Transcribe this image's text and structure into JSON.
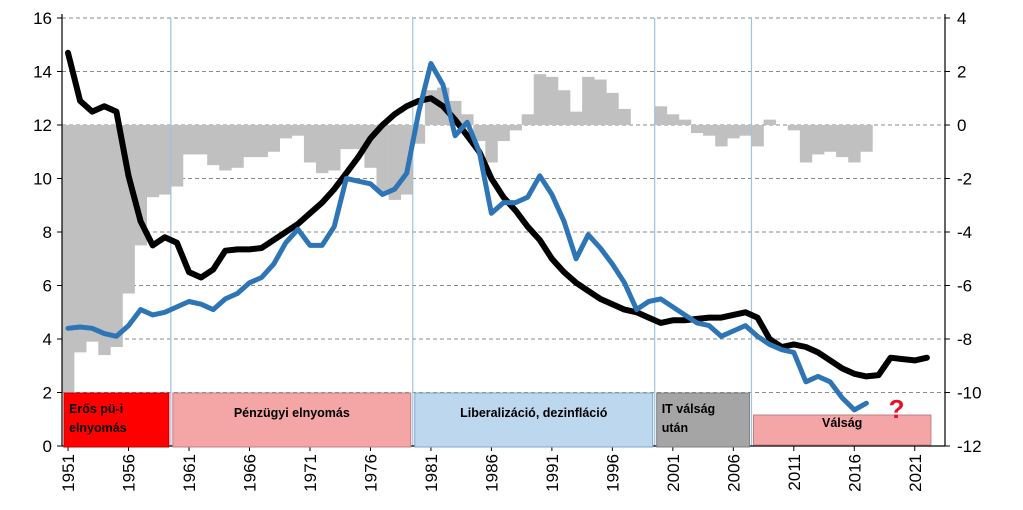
{
  "chart_data": {
    "type": "line",
    "title": "",
    "xlabel": "",
    "ylabel": "",
    "x_range": [
      1951,
      2023
    ],
    "ylim_left": [
      0,
      16
    ],
    "ylim_right": [
      -12,
      4
    ],
    "left_ticks": [
      "0",
      "2",
      "4",
      "6",
      "8",
      "10",
      "12",
      "14",
      "16"
    ],
    "right_ticks": [
      "-12",
      "-10",
      "-8",
      "-6",
      "-4",
      "-2",
      "0",
      "2",
      "4"
    ],
    "x_ticks": [
      "1951",
      "1956",
      "1961",
      "1966",
      "1971",
      "1976",
      "1981",
      "1986",
      "1991",
      "1996",
      "2001",
      "2006",
      "2011",
      "2016",
      "2021"
    ],
    "grid": "horizontal dashed at right-axis values",
    "vertical_dividers": [
      1960,
      1980,
      2000,
      2008
    ],
    "colors": {
      "black_line": "#000000",
      "blue_line": "#2e75b6",
      "bars": "#c0c0c0",
      "divider": "#9ec3e0"
    },
    "eras": [
      {
        "label_lines": [
          "Erős pü-i",
          "elnyomás"
        ],
        "from": 1951,
        "to": 1960,
        "fill": "#ff0000",
        "stroke": "#c00000"
      },
      {
        "label_lines": [
          "Pénzügyi elnyomás"
        ],
        "from": 1960,
        "to": 1980,
        "fill": "#f4a6a6",
        "stroke": "#c08080"
      },
      {
        "label_lines": [
          "Liberalizáció, dezinfláció"
        ],
        "from": 1980,
        "to": 2000,
        "fill": "#bdd7ee",
        "stroke": "#7da7c8"
      },
      {
        "label_lines": [
          "IT válság",
          "után"
        ],
        "from": 2000,
        "to": 2008,
        "fill": "#a5a5a5",
        "stroke": "#7f7f7f"
      },
      {
        "label_lines": [
          "Válság"
        ],
        "from": 2008,
        "to": 2023,
        "fill": "#f4a6a6",
        "stroke": "#c08080"
      }
    ],
    "annotation": {
      "text": "?",
      "color": "#e81123",
      "x": 2019,
      "y_left": 1.5
    },
    "series": [
      {
        "name": "black",
        "axis": "left",
        "x": [
          1951,
          1952,
          1953,
          1954,
          1955,
          1956,
          1957,
          1958,
          1959,
          1960,
          1961,
          1962,
          1963,
          1964,
          1965,
          1966,
          1967,
          1968,
          1969,
          1970,
          1971,
          1972,
          1973,
          1974,
          1975,
          1976,
          1977,
          1978,
          1979,
          1980,
          1981,
          1982,
          1983,
          1984,
          1985,
          1986,
          1987,
          1988,
          1989,
          1990,
          1991,
          1992,
          1993,
          1994,
          1995,
          1996,
          1997,
          1998,
          1999,
          2000,
          2001,
          2002,
          2003,
          2004,
          2005,
          2006,
          2007,
          2008,
          2009,
          2010,
          2011,
          2012,
          2013,
          2014,
          2015,
          2016,
          2017,
          2018,
          2019,
          2020,
          2021,
          2022
        ],
        "values": [
          14.7,
          12.9,
          12.5,
          12.7,
          12.5,
          10.1,
          8.4,
          7.5,
          7.8,
          7.6,
          6.5,
          6.3,
          6.6,
          7.3,
          7.35,
          7.35,
          7.4,
          7.7,
          8.0,
          8.3,
          8.7,
          9.1,
          9.6,
          10.2,
          10.8,
          11.5,
          12.0,
          12.4,
          12.7,
          12.9,
          13.0,
          12.7,
          12.2,
          11.6,
          11.0,
          10.0,
          9.3,
          8.8,
          8.2,
          7.7,
          7.0,
          6.5,
          6.1,
          5.8,
          5.5,
          5.3,
          5.1,
          5.0,
          4.8,
          4.6,
          4.7,
          4.7,
          4.75,
          4.8,
          4.8,
          4.9,
          5.0,
          4.8,
          4.0,
          3.7,
          3.8,
          3.7,
          3.5,
          3.2,
          2.9,
          2.7,
          2.6,
          2.65,
          3.3,
          3.25,
          3.2,
          3.3
        ]
      },
      {
        "name": "blue",
        "axis": "left",
        "x": [
          1951,
          1952,
          1953,
          1954,
          1955,
          1956,
          1957,
          1958,
          1959,
          1960,
          1961,
          1962,
          1963,
          1964,
          1965,
          1966,
          1967,
          1968,
          1969,
          1970,
          1971,
          1972,
          1973,
          1974,
          1975,
          1976,
          1977,
          1978,
          1979,
          1980,
          1981,
          1982,
          1983,
          1984,
          1985,
          1986,
          1987,
          1988,
          1989,
          1990,
          1991,
          1992,
          1993,
          1994,
          1995,
          1996,
          1997,
          1998,
          1999,
          2000,
          2001,
          2002,
          2003,
          2004,
          2005,
          2006,
          2007,
          2008,
          2009,
          2010,
          2011,
          2012,
          2013,
          2014,
          2015,
          2016,
          2017
        ],
        "values": [
          4.4,
          4.45,
          4.4,
          4.2,
          4.1,
          4.5,
          5.1,
          4.9,
          5.0,
          5.2,
          5.4,
          5.3,
          5.1,
          5.5,
          5.7,
          6.1,
          6.3,
          6.8,
          7.6,
          8.1,
          7.5,
          7.5,
          8.2,
          10.0,
          9.9,
          9.8,
          9.4,
          9.6,
          10.2,
          12.5,
          14.3,
          13.5,
          11.6,
          12.1,
          11.0,
          8.7,
          9.1,
          9.1,
          9.3,
          10.1,
          9.4,
          8.4,
          7.0,
          7.9,
          7.4,
          6.8,
          6.1,
          5.1,
          5.4,
          5.5,
          5.2,
          4.9,
          4.6,
          4.5,
          4.1,
          4.3,
          4.5,
          4.1,
          3.8,
          3.6,
          3.5,
          2.4,
          2.6,
          2.4,
          1.8,
          1.35,
          1.6
        ]
      },
      {
        "name": "bars",
        "type": "bar",
        "axis": "right",
        "x": [
          1951,
          1952,
          1953,
          1954,
          1955,
          1956,
          1957,
          1958,
          1959,
          1960,
          1961,
          1962,
          1963,
          1964,
          1965,
          1966,
          1967,
          1968,
          1969,
          1970,
          1971,
          1972,
          1973,
          1974,
          1975,
          1976,
          1977,
          1978,
          1979,
          1980,
          1981,
          1982,
          1983,
          1984,
          1985,
          1986,
          1987,
          1988,
          1989,
          1990,
          1991,
          1992,
          1993,
          1994,
          1995,
          1996,
          1997,
          1998,
          1999,
          2000,
          2001,
          2002,
          2003,
          2004,
          2005,
          2006,
          2007,
          2008,
          2009,
          2010,
          2011,
          2012,
          2013,
          2014,
          2015,
          2016,
          2017
        ],
        "values": [
          -10.0,
          -8.5,
          -8.1,
          -8.6,
          -8.3,
          -6.3,
          -4.5,
          -2.7,
          -2.6,
          -2.3,
          -1.1,
          -1.1,
          -1.5,
          -1.7,
          -1.6,
          -1.2,
          -1.2,
          -1.0,
          -0.5,
          -0.4,
          -1.4,
          -1.8,
          -1.7,
          -0.9,
          -0.9,
          -1.6,
          -2.5,
          -2.8,
          -2.6,
          -0.7,
          1.3,
          1.4,
          0.9,
          0.4,
          -0.6,
          -1.4,
          -0.6,
          -0.2,
          0.4,
          1.9,
          1.8,
          1.3,
          0.5,
          1.8,
          1.7,
          1.2,
          0.6,
          0.0,
          0.0,
          0.7,
          0.4,
          0.2,
          -0.3,
          -0.4,
          -0.8,
          -0.5,
          -0.4,
          -0.8,
          0.2,
          0.0,
          -0.2,
          -1.4,
          -1.1,
          -1.0,
          -1.2,
          -1.4,
          -1.0
        ]
      }
    ]
  }
}
